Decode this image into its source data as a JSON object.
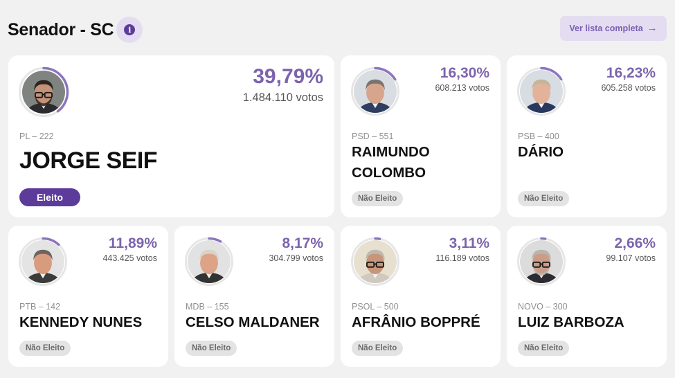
{
  "header": {
    "title": "Senador - SC",
    "info_icon": "i",
    "more_label": "Ver lista completa",
    "more_arrow": "→"
  },
  "colors": {
    "accent": "#7c64ad",
    "elected_badge": "#5d3b9a",
    "ring_track": "#e6e6e6",
    "ring_fill": "#8c74bf"
  },
  "candidates": [
    {
      "name": "JORGE SEIF",
      "party": "PL – 222",
      "percent": "39,79%",
      "votes": "1.484.110 votos",
      "status": "Eleito",
      "share": 0.3979
    },
    {
      "name": "RAIMUNDO COLOMBO",
      "party": "PSD – 551",
      "percent": "16,30%",
      "votes": "608.213 votos",
      "status": "Não Eleito",
      "share": 0.163
    },
    {
      "name": "DÁRIO",
      "party": "PSB – 400",
      "percent": "16,23%",
      "votes": "605.258 votos",
      "status": "Não Eleito",
      "share": 0.1623
    },
    {
      "name": "KENNEDY NUNES",
      "party": "PTB – 142",
      "percent": "11,89%",
      "votes": "443.425 votos",
      "status": "Não Eleito",
      "share": 0.1189
    },
    {
      "name": "CELSO MALDANER",
      "party": "MDB – 155",
      "percent": "8,17%",
      "votes": "304.799 votos",
      "status": "Não Eleito",
      "share": 0.0817
    },
    {
      "name": "AFRÂNIO BOPPRÉ",
      "party": "PSOL – 500",
      "percent": "3,11%",
      "votes": "116.189 votos",
      "status": "Não Eleito",
      "share": 0.0311
    },
    {
      "name": "LUIZ BARBOZA",
      "party": "NOVO – 300",
      "percent": "2,66%",
      "votes": "99.107 votos",
      "status": "Não Eleito",
      "share": 0.0266
    }
  ]
}
